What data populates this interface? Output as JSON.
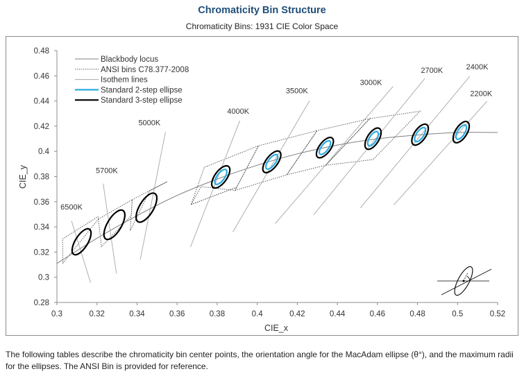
{
  "header": {
    "title": "Chromaticity Bin Structure",
    "subtitle": "Chromaticity Bins: 1931 CIE Color Space"
  },
  "caption": "The following tables describe the chromaticity bin center points, the orientation angle for the MacAdam ellipse (θ°), and the maximum radii for the ellipses. The ANSI Bin is provided for reference.",
  "colors": {
    "locus": "#7f7f7f",
    "ansi": "#404040",
    "isotherm": "#a6a6a6",
    "two_step": "#29abe2",
    "three_step": "#000000",
    "title": "#1f4e79"
  },
  "chart_data": {
    "type": "scatter",
    "title": "Chromaticity Bins: 1931 CIE Color Space",
    "xlabel": "CIE_x",
    "ylabel": "CIE_y",
    "xlim": [
      0.3,
      0.52
    ],
    "ylim": [
      0.28,
      0.48
    ],
    "xticks": [
      "0.3",
      "0.32",
      "0.34",
      "0.36",
      "0.38",
      "0.4",
      "0.42",
      "0.44",
      "0.46",
      "0.48",
      "0.5",
      "0.52"
    ],
    "yticks": [
      "0.28",
      "0.3",
      "0.32",
      "0.34",
      "0.36",
      "0.38",
      "0.4",
      "0.42",
      "0.44",
      "0.46",
      "0.48"
    ],
    "legend": [
      {
        "label": "Blackbody locus",
        "style": "locus"
      },
      {
        "label": "ANSI bins C78.377-2008",
        "style": "ansi"
      },
      {
        "label": "Isothem lines",
        "style": "isotherm"
      },
      {
        "label": "Standard 2-step ellipse",
        "style": "two_step"
      },
      {
        "label": "Standard 3-step ellipse",
        "style": "three_step"
      }
    ],
    "locus": [
      [
        0.3,
        0.311
      ],
      [
        0.32,
        0.331
      ],
      [
        0.34,
        0.349
      ],
      [
        0.36,
        0.365
      ],
      [
        0.38,
        0.378
      ],
      [
        0.4,
        0.389
      ],
      [
        0.42,
        0.398
      ],
      [
        0.44,
        0.405
      ],
      [
        0.46,
        0.41
      ],
      [
        0.48,
        0.413
      ],
      [
        0.5,
        0.415
      ],
      [
        0.52,
        0.415
      ]
    ],
    "ellipses": [
      {
        "cct": "6500K",
        "x": 0.3123,
        "y": 0.3282,
        "a": 0.0074,
        "b": 0.0031,
        "angle": 58,
        "two_step": false
      },
      {
        "cct": "5700K",
        "x": 0.3287,
        "y": 0.3417,
        "a": 0.0083,
        "b": 0.0035,
        "angle": 59,
        "two_step": false
      },
      {
        "cct": "5000K",
        "x": 0.3447,
        "y": 0.3553,
        "a": 0.0082,
        "b": 0.0035,
        "angle": 59,
        "two_step": false
      },
      {
        "cct": "4000K",
        "x": 0.3818,
        "y": 0.3797,
        "a": 0.0065,
        "b": 0.003,
        "angle": 54,
        "two_step": true
      },
      {
        "cct": "3500K",
        "x": 0.4073,
        "y": 0.3917,
        "a": 0.0064,
        "b": 0.0029,
        "angle": 53,
        "two_step": true
      },
      {
        "cct": "3000K",
        "x": 0.4338,
        "y": 0.403,
        "a": 0.006,
        "b": 0.0028,
        "angle": 53,
        "two_step": true
      },
      {
        "cct": "2700K",
        "x": 0.4578,
        "y": 0.4101,
        "a": 0.006,
        "b": 0.0029,
        "angle": 58,
        "two_step": true
      },
      {
        "cct": "2400K",
        "x": 0.4813,
        "y": 0.4133,
        "a": 0.006,
        "b": 0.0029,
        "angle": 56,
        "two_step": true
      },
      {
        "cct": "2200K",
        "x": 0.5018,
        "y": 0.4153,
        "a": 0.006,
        "b": 0.0029,
        "angle": 58,
        "two_step": true
      }
    ],
    "ansi_bins": [
      [
        [
          0.3028,
          0.3304
        ],
        [
          0.3205,
          0.3481
        ],
        [
          0.3207,
          0.3462
        ],
        [
          0.303,
          0.3113
        ]
      ],
      [
        [
          0.3207,
          0.3462
        ],
        [
          0.3376,
          0.3616
        ],
        [
          0.3371,
          0.349
        ],
        [
          0.3222,
          0.3243
        ]
      ],
      [
        [
          0.3376,
          0.3616
        ],
        [
          0.3551,
          0.376
        ],
        [
          0.3463,
          0.3687
        ],
        [
          0.3366,
          0.3369
        ]
      ],
      [
        [
          0.367,
          0.3578
        ],
        [
          0.3898,
          0.3716
        ],
        [
          0.3889,
          0.369
        ],
        [
          0.372,
          0.372
        ]
      ],
      [
        [
          0.367,
          0.3578
        ],
        [
          0.3898,
          0.3716
        ],
        [
          0.4006,
          0.4044
        ],
        [
          0.3736,
          0.3874
        ]
      ],
      [
        [
          0.3889,
          0.369
        ],
        [
          0.4147,
          0.3814
        ],
        [
          0.4299,
          0.4165
        ],
        [
          0.4006,
          0.4044
        ]
      ],
      [
        [
          0.4147,
          0.3814
        ],
        [
          0.4342,
          0.389
        ],
        [
          0.4562,
          0.426
        ],
        [
          0.4299,
          0.4165
        ]
      ],
      [
        [
          0.4342,
          0.389
        ],
        [
          0.4562,
          0.426
        ],
        [
          0.4813,
          0.4319
        ],
        [
          0.4578,
          0.3935
        ]
      ]
    ],
    "isotherms": [
      {
        "cct": "6500K",
        "label_x": 0.3073,
        "label_y": 0.3538,
        "from": [
          0.3073,
          0.3448
        ],
        "to": [
          0.3168,
          0.2957
        ]
      },
      {
        "cct": "5700K",
        "label_x": 0.3249,
        "label_y": 0.3828,
        "from": [
          0.3231,
          0.3743
        ],
        "to": [
          0.3297,
          0.303
        ]
      },
      {
        "cct": "5000K",
        "label_x": 0.3462,
        "label_y": 0.4208,
        "from": [
          0.3542,
          0.4155
        ],
        "to": [
          0.3416,
          0.314
        ]
      },
      {
        "cct": "4000K",
        "label_x": 0.3905,
        "label_y": 0.4298,
        "from": [
          0.3913,
          0.4243
        ],
        "to": [
          0.3667,
          0.3242
        ]
      },
      {
        "cct": "3500K",
        "label_x": 0.4198,
        "label_y": 0.446,
        "from": [
          0.4261,
          0.4402
        ],
        "to": [
          0.3878,
          0.336
        ]
      },
      {
        "cct": "3000K",
        "label_x": 0.4568,
        "label_y": 0.4528,
        "from": [
          0.4678,
          0.4516
        ],
        "to": [
          0.409,
          0.3427
        ]
      },
      {
        "cct": "2700K",
        "label_x": 0.4872,
        "label_y": 0.4623,
        "from": [
          0.4836,
          0.4578
        ],
        "to": [
          0.4281,
          0.3495
        ]
      },
      {
        "cct": "2400K",
        "label_x": 0.5098,
        "label_y": 0.4651,
        "from": [
          0.5061,
          0.4596
        ],
        "to": [
          0.4515,
          0.3551
        ]
      },
      {
        "cct": "2200K",
        "label_x": 0.5118,
        "label_y": 0.444,
        "from": [
          0.5147,
          0.4398
        ],
        "to": [
          0.4682,
          0.3575
        ]
      }
    ]
  }
}
